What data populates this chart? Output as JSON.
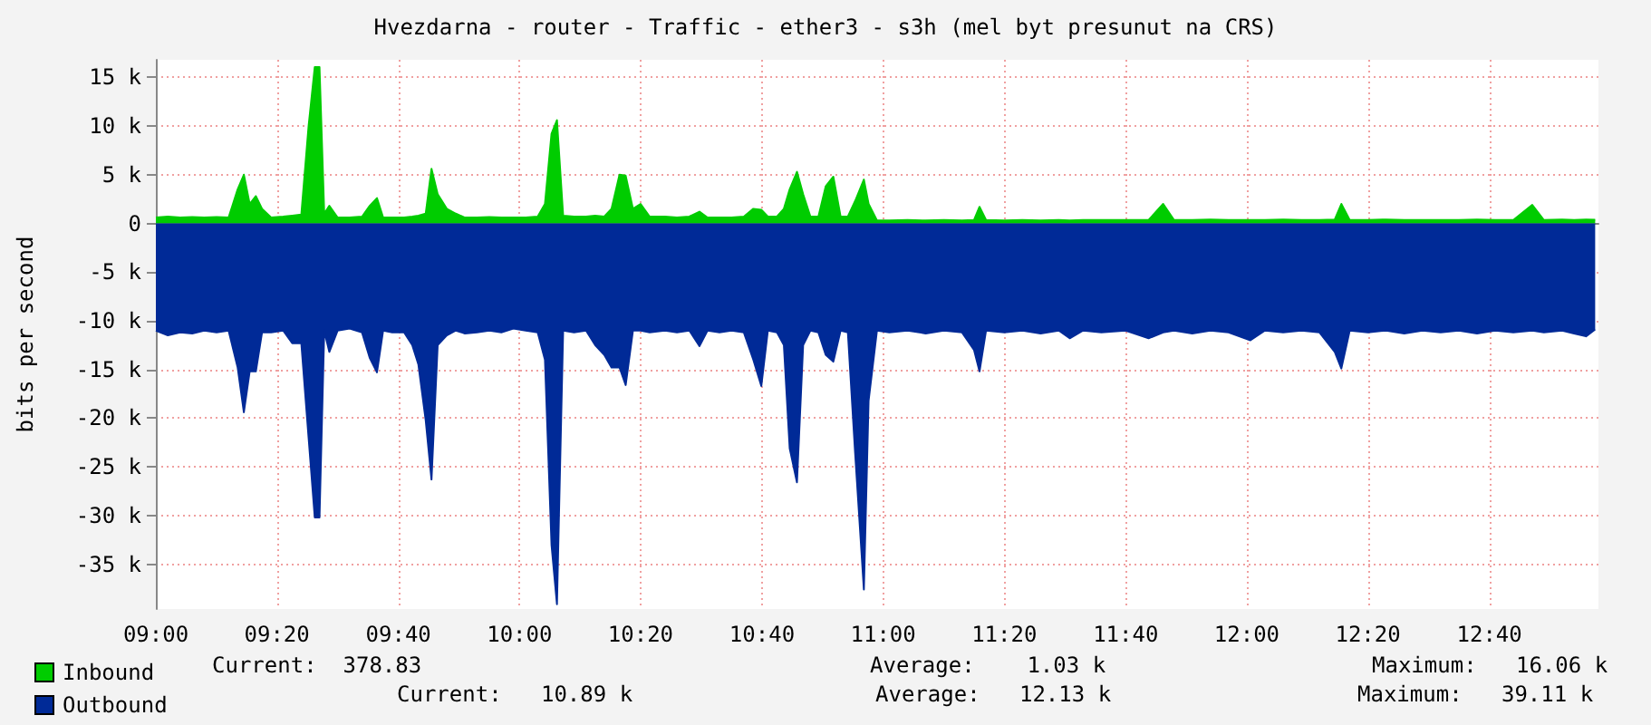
{
  "chart_data": {
    "type": "area",
    "title": "Hvezdarna - router - Traffic - ether3 - s3h (mel byt presunut na CRS)",
    "ylabel": "bits per second",
    "x": [
      9.0,
      9.033,
      9.067,
      9.1,
      9.133,
      9.167,
      9.2,
      9.225,
      9.242,
      9.258,
      9.275,
      9.292,
      9.317,
      9.35,
      9.375,
      9.4,
      9.42,
      9.437,
      9.45,
      9.463,
      9.477,
      9.5,
      9.533,
      9.567,
      9.588,
      9.608,
      9.625,
      9.65,
      9.683,
      9.705,
      9.722,
      9.742,
      9.758,
      9.775,
      9.8,
      9.825,
      9.85,
      9.883,
      9.917,
      9.95,
      9.983,
      10.017,
      10.05,
      10.07,
      10.088,
      10.103,
      10.12,
      10.15,
      10.183,
      10.208,
      10.233,
      10.253,
      10.275,
      10.292,
      10.312,
      10.333,
      10.358,
      10.4,
      10.433,
      10.467,
      10.495,
      10.517,
      10.55,
      10.583,
      10.617,
      10.643,
      10.665,
      10.683,
      10.708,
      10.727,
      10.743,
      10.763,
      10.78,
      10.8,
      10.822,
      10.842,
      10.863,
      10.883,
      10.903,
      10.923,
      10.947,
      10.96,
      10.983,
      11.017,
      11.067,
      11.117,
      11.167,
      11.217,
      11.25,
      11.265,
      11.283,
      11.333,
      11.383,
      11.433,
      11.483,
      11.513,
      11.55,
      11.6,
      11.667,
      11.73,
      11.77,
      11.8,
      11.85,
      11.9,
      11.95,
      12.01,
      12.05,
      12.1,
      12.15,
      12.2,
      12.242,
      12.26,
      12.283,
      12.333,
      12.383,
      12.433,
      12.483,
      12.533,
      12.583,
      12.633,
      12.683,
      12.733,
      12.785,
      12.817,
      12.867,
      12.9,
      12.933,
      12.958
    ],
    "series": [
      {
        "name": "Inbound",
        "color": "#00cc00",
        "values": [
          600,
          700,
          600,
          650,
          600,
          650,
          600,
          3500,
          5000,
          2000,
          2800,
          1500,
          600,
          700,
          800,
          900,
          10000,
          16060,
          16060,
          1000,
          1800,
          600,
          600,
          700,
          1800,
          2600,
          600,
          600,
          600,
          700,
          800,
          1000,
          5600,
          3000,
          1500,
          1000,
          600,
          600,
          650,
          600,
          600,
          600,
          700,
          2000,
          9200,
          10600,
          800,
          700,
          700,
          800,
          700,
          1500,
          5000,
          4900,
          1500,
          2000,
          700,
          700,
          600,
          700,
          1200,
          600,
          600,
          600,
          700,
          1500,
          1400,
          700,
          700,
          1500,
          3500,
          5300,
          3000,
          700,
          700,
          3800,
          4800,
          700,
          700,
          2300,
          4500,
          2000,
          300,
          300,
          350,
          300,
          350,
          300,
          350,
          1700,
          350,
          300,
          350,
          300,
          350,
          300,
          350,
          350,
          350,
          350,
          2000,
          350,
          350,
          400,
          350,
          350,
          350,
          400,
          350,
          350,
          400,
          2000,
          350,
          350,
          400,
          350,
          350,
          350,
          350,
          400,
          350,
          350,
          1900,
          350,
          400,
          350,
          400,
          380
        ]
      },
      {
        "name": "Outbound",
        "color": "#002a97",
        "values": [
          -11000,
          -11500,
          -11200,
          -11300,
          -11000,
          -11200,
          -11000,
          -14800,
          -19400,
          -15200,
          -15200,
          -11200,
          -11200,
          -11000,
          -12300,
          -12300,
          -22000,
          -30200,
          -30200,
          -11000,
          -13200,
          -11000,
          -10800,
          -11200,
          -13800,
          -15300,
          -11000,
          -11200,
          -11200,
          -12500,
          -14500,
          -20200,
          -26300,
          -12500,
          -11500,
          -11000,
          -11300,
          -11200,
          -11000,
          -11200,
          -10800,
          -11000,
          -11200,
          -14000,
          -33000,
          -39110,
          -11000,
          -11200,
          -11000,
          -12500,
          -13500,
          -14800,
          -14800,
          -16600,
          -11000,
          -11000,
          -11200,
          -11000,
          -11200,
          -11000,
          -12600,
          -11000,
          -11200,
          -11000,
          -11200,
          -14000,
          -16700,
          -11000,
          -11200,
          -12500,
          -23100,
          -26600,
          -12500,
          -11000,
          -11200,
          -13500,
          -14200,
          -11000,
          -11200,
          -23600,
          -37600,
          -18200,
          -11000,
          -11200,
          -11000,
          -11300,
          -11000,
          -11200,
          -13000,
          -15200,
          -11000,
          -11200,
          -11000,
          -11300,
          -11000,
          -11800,
          -11000,
          -11200,
          -11000,
          -11800,
          -11200,
          -11000,
          -11300,
          -11000,
          -11200,
          -12000,
          -11000,
          -11200,
          -11000,
          -11200,
          -13200,
          -14900,
          -11000,
          -11200,
          -11000,
          -11300,
          -11000,
          -11200,
          -11000,
          -11300,
          -11000,
          -11200,
          -11000,
          -11200,
          -11000,
          -11300,
          -11600,
          -10890
        ]
      }
    ],
    "xlim": [
      9.0,
      12.967
    ],
    "xticks": [
      {
        "value": 9.0,
        "label": "09:00"
      },
      {
        "value": 9.333,
        "label": "09:20"
      },
      {
        "value": 9.667,
        "label": "09:40"
      },
      {
        "value": 10.0,
        "label": "10:00"
      },
      {
        "value": 10.333,
        "label": "10:20"
      },
      {
        "value": 10.667,
        "label": "10:40"
      },
      {
        "value": 11.0,
        "label": "11:00"
      },
      {
        "value": 11.333,
        "label": "11:20"
      },
      {
        "value": 11.667,
        "label": "11:40"
      },
      {
        "value": 12.0,
        "label": "12:00"
      },
      {
        "value": 12.333,
        "label": "12:20"
      },
      {
        "value": 12.667,
        "label": "12:40"
      }
    ],
    "ylim": [
      -39600,
      16800
    ],
    "yticks": [
      {
        "value": -35000,
        "label": "-35 k"
      },
      {
        "value": -30000,
        "label": "-30 k"
      },
      {
        "value": -25000,
        "label": "-25 k"
      },
      {
        "value": -20000,
        "label": "-20 k"
      },
      {
        "value": -15000,
        "label": "-15 k"
      },
      {
        "value": -10000,
        "label": "-10 k"
      },
      {
        "value": -5000,
        "label": "-5 k"
      },
      0,
      {
        "value": 5000,
        "label": "5 k"
      },
      {
        "value": 10000,
        "label": "10 k"
      },
      {
        "value": 15000,
        "label": "15 k"
      }
    ],
    "grid": true,
    "legend": "bottom left",
    "marker": "none",
    "annotations": [
      "Current:  378.83",
      "Average:    1.03 k",
      "Maximum:   16.06 k",
      "Current:   10.89 k",
      "Average:   12.13 k",
      "Maximum:   39.11 k"
    ]
  }
}
